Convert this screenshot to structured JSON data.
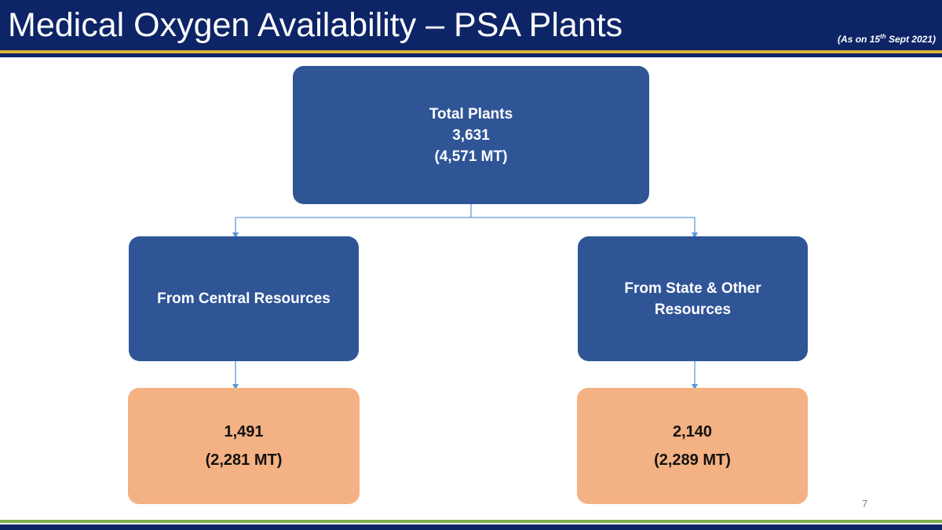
{
  "header": {
    "title": "Medical Oxygen Availability – PSA Plants",
    "as_on_prefix": "(As on 15",
    "as_on_sup": "th",
    "as_on_suffix": " Sept 2021)"
  },
  "diagram": {
    "root": {
      "label": "Total Plants",
      "value": "3,631",
      "capacity": "(4,571 MT)"
    },
    "central": {
      "label": "From Central Resources",
      "value": "1,491",
      "capacity": "(2,281 MT)"
    },
    "state": {
      "label_line1": "From State & Other",
      "label_line2": "Resources",
      "value": "2,140",
      "capacity": "(2,289 MT)"
    }
  },
  "footer": {
    "page_number": "7"
  },
  "colors": {
    "header_navy": "#0d2466",
    "accent_gold": "#e0b43a",
    "box_blue": "#2f5597",
    "box_orange": "#f4b183",
    "connector": "#5b9bd5",
    "footer_green": "#7fb24b"
  }
}
